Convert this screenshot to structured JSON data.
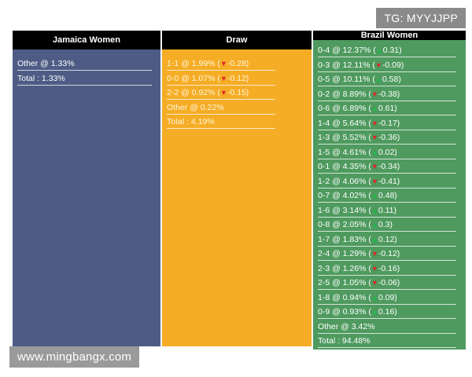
{
  "watermark_top": "TG: MYYJJPP",
  "watermark_bottom": "www.mingbangx.com",
  "columns": {
    "jamaica": {
      "title": "Jamaica Women",
      "rows": [
        {
          "text": "Other @ 1.33%"
        },
        {
          "text": "Total : 1.33%"
        }
      ]
    },
    "draw": {
      "title": "Draw",
      "rows": [
        {
          "text": "1-1 @ 1.99% (",
          "dir": "down",
          "change": "-0.28)"
        },
        {
          "text": "0-0 @ 1.07% (",
          "dir": "down",
          "change": "-0.12)"
        },
        {
          "text": "2-2 @ 0.92% (",
          "dir": "down",
          "change": "-0.15)"
        },
        {
          "text": "Other @ 0.22%"
        },
        {
          "text": "Total : 4.19%"
        }
      ]
    },
    "brazil": {
      "title": "Brazil Women",
      "rows": [
        {
          "text": "0-4 @ 12.37% (",
          "dir": "up",
          "change": "0.31)"
        },
        {
          "text": "0-3 @ 12.11% (",
          "dir": "down",
          "change": "-0.09)"
        },
        {
          "text": "0-5 @ 10.11% (",
          "dir": "up",
          "change": "0.58)"
        },
        {
          "text": "0-2 @ 8.89% (",
          "dir": "down",
          "change": "-0.38)"
        },
        {
          "text": "0-6 @ 6.89% (",
          "dir": "up",
          "change": "0.61)"
        },
        {
          "text": "1-4 @ 5.64% (",
          "dir": "down",
          "change": "-0.17)"
        },
        {
          "text": "1-3 @ 5.52% (",
          "dir": "down",
          "change": "-0.36)"
        },
        {
          "text": "1-5 @ 4.61% (",
          "dir": "up",
          "change": "0.02)"
        },
        {
          "text": "0-1 @ 4.35% (",
          "dir": "down",
          "change": "-0.34)"
        },
        {
          "text": "1-2 @ 4.06% (",
          "dir": "down",
          "change": "-0.41)"
        },
        {
          "text": "0-7 @ 4.02% (",
          "dir": "up",
          "change": "0.48)"
        },
        {
          "text": "1-6 @ 3.14% (",
          "dir": "up",
          "change": "0.11)"
        },
        {
          "text": "0-8 @ 2.05% (",
          "dir": "up",
          "change": "0.3)"
        },
        {
          "text": "1-7 @ 1.83% (",
          "dir": "up",
          "change": "0.12)"
        },
        {
          "text": "2-4 @ 1.29% (",
          "dir": "down",
          "change": "-0.12)"
        },
        {
          "text": "2-3 @ 1.26% (",
          "dir": "down",
          "change": "-0.16)"
        },
        {
          "text": "2-5 @ 1.05% (",
          "dir": "down",
          "change": "-0.06)"
        },
        {
          "text": "1-8 @ 0.94% (",
          "dir": "up",
          "change": "0.09)"
        },
        {
          "text": "0-9 @ 0.93% (",
          "dir": "up",
          "change": "0.16)"
        },
        {
          "text": "Other @ 3.42%"
        },
        {
          "text": "Total : 94.48%"
        }
      ]
    }
  }
}
